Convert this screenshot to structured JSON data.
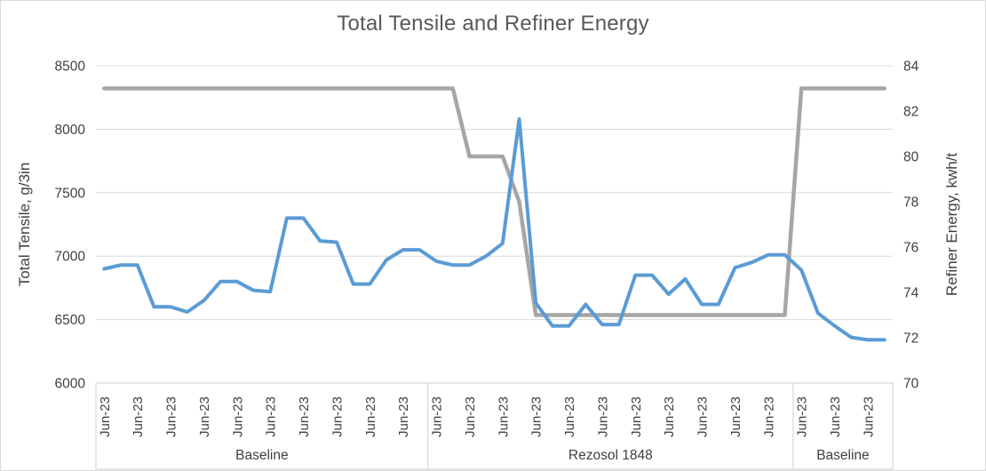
{
  "chart_data": {
    "type": "line",
    "title": "Total Tensile and Refiner Energy",
    "x_tick_label": "Jun-23",
    "label_every": 2,
    "x_groups": [
      {
        "label": "Baseline",
        "points": 20
      },
      {
        "label": "Rezosol 1848",
        "points": 22
      },
      {
        "label": "Baseline",
        "points": 6
      }
    ],
    "left_axis": {
      "title": "Total Tensile, g/3in",
      "min": 6000,
      "max": 8500,
      "ticks": [
        8500,
        8000,
        7500,
        7000,
        6500,
        6000
      ]
    },
    "right_axis": {
      "title": "Refiner Energy, kwh/t",
      "min": 70,
      "max": 84,
      "ticks": [
        84,
        82,
        80,
        78,
        76,
        74,
        72,
        70
      ]
    },
    "grid": true,
    "legend": "none",
    "colors": {
      "grid": "#d9d9d9",
      "band_line": "#cfcfcf",
      "tick_text": "#404040",
      "title_text": "#595959",
      "tensile_line": "#5b9bd5",
      "energy_line": "#a6a6a6"
    },
    "series": [
      {
        "name": "Total Tensile, g/3in",
        "axis": "left",
        "color": "#5b9bd5",
        "stroke_width": 4,
        "values": [
          6900,
          6930,
          6930,
          6600,
          6600,
          6560,
          6650,
          6800,
          6800,
          6730,
          6720,
          7300,
          7300,
          7120,
          7110,
          6780,
          6780,
          6970,
          7050,
          7050,
          6960,
          6930,
          6930,
          7000,
          7100,
          8080,
          6630,
          6450,
          6450,
          6620,
          6460,
          6460,
          6850,
          6850,
          6700,
          6820,
          6620,
          6620,
          6910,
          6950,
          7010,
          7010,
          6890,
          6550,
          6450,
          6360,
          6340,
          6340
        ]
      },
      {
        "name": "Refiner Energy, kwh/t",
        "axis": "right",
        "color": "#a6a6a6",
        "stroke_width": 4.5,
        "values": [
          83,
          83,
          83,
          83,
          83,
          83,
          83,
          83,
          83,
          83,
          83,
          83,
          83,
          83,
          83,
          83,
          83,
          83,
          83,
          83,
          83,
          83,
          80,
          80,
          80,
          78,
          73,
          73,
          73,
          73,
          73,
          73,
          73,
          73,
          73,
          73,
          73,
          73,
          73,
          73,
          73,
          73,
          83,
          83,
          83,
          83,
          83,
          83
        ]
      }
    ]
  }
}
